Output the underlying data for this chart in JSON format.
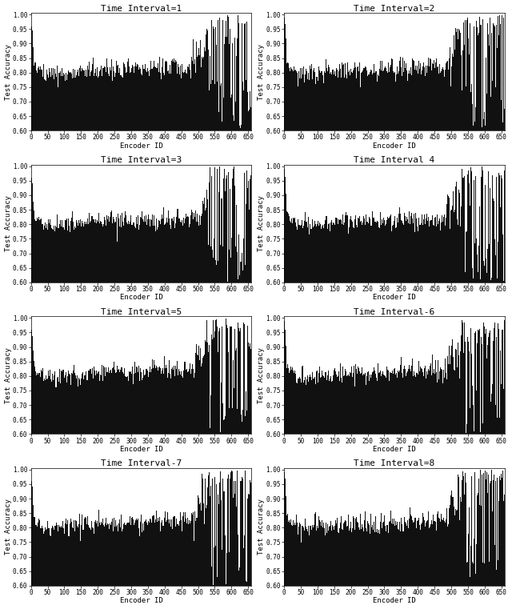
{
  "n_intervals": 8,
  "n_encoders": 660,
  "titles": [
    "Time Interval=1",
    "Time Interval=2",
    "Time Interval=3",
    "Time Interval 4",
    "Time Interval=5",
    "Time Interval-6",
    "Time Interval-7",
    "Time Interval=8"
  ],
  "xlabel": "Encoder ID",
  "ylabel": "Test Accuracy",
  "ylim_left": [
    0.6,
    1.0
  ],
  "ylim_right": [
    0.6,
    1.0
  ],
  "xlim": [
    0,
    660
  ],
  "yticks": [
    0.6,
    0.65,
    0.7,
    0.75,
    0.8,
    0.85,
    0.9,
    0.95,
    1.0
  ],
  "xticks": [
    0,
    50,
    100,
    150,
    200,
    250,
    300,
    350,
    400,
    450,
    500,
    550,
    600,
    650
  ],
  "bar_color": "#111111",
  "background_color": "#ffffff",
  "title_fontsize": 8,
  "label_fontsize": 6.5,
  "tick_fontsize": 5.5,
  "figsize": [
    6.4,
    7.61
  ],
  "dpi": 100,
  "seed_base": 42
}
